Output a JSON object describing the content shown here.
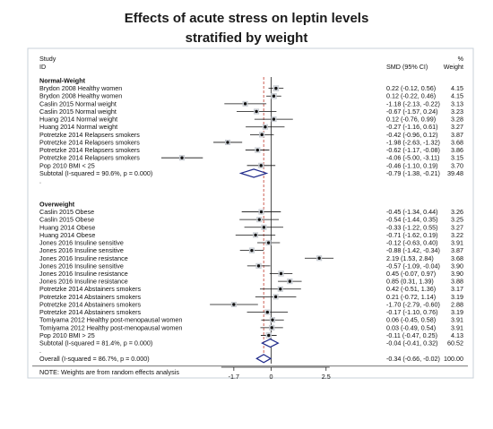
{
  "chart_data": {
    "type": "forest",
    "title_lines": [
      "Effects of acute stress on leptin levels",
      "stratified by weight"
    ],
    "headers": {
      "study": "Study",
      "id": "ID",
      "smd": "SMD (95% CI)",
      "weight_pct": "%",
      "weight": "Weight"
    },
    "x_ticks": [
      {
        "value": -1.7,
        "label": "-1.7"
      },
      {
        "value": 0,
        "label": "0"
      },
      {
        "value": 2.5,
        "label": "2.5"
      }
    ],
    "overall_line_value": -0.34,
    "groups": [
      {
        "name": "Normal-Weight",
        "studies": [
          {
            "label": "Brydon 2008 Healthy women",
            "es": 0.22,
            "lo": -0.12,
            "hi": 0.56,
            "ci_text": "0.22 (-0.12, 0.56)",
            "weight": "4.15"
          },
          {
            "label": "Brydon 2008 Healthy women",
            "es": 0.12,
            "lo": -0.22,
            "hi": 0.46,
            "ci_text": "0.12 (-0.22, 0.46)",
            "weight": "4.15"
          },
          {
            "label": "Caslin 2015 Normal weight",
            "es": -1.18,
            "lo": -2.13,
            "hi": -0.22,
            "ci_text": "-1.18 (-2.13, -0.22)",
            "weight": "3.13"
          },
          {
            "label": "Caslin 2015 Normal weight",
            "es": -0.67,
            "lo": -1.57,
            "hi": 0.24,
            "ci_text": "-0.67 (-1.57, 0.24)",
            "weight": "3.23"
          },
          {
            "label": "Huang 2014 Normal weight",
            "es": 0.12,
            "lo": -0.76,
            "hi": 0.99,
            "ci_text": "0.12 (-0.76, 0.99)",
            "weight": "3.28"
          },
          {
            "label": "Huang 2014 Normal weight",
            "es": -0.27,
            "lo": -1.16,
            "hi": 0.61,
            "ci_text": "-0.27 (-1.16, 0.61)",
            "weight": "3.27"
          },
          {
            "label": "Potretzke 2014 Relapsers smokers",
            "es": -0.42,
            "lo": -0.96,
            "hi": 0.12,
            "ci_text": "-0.42 (-0.96, 0.12)",
            "weight": "3.87"
          },
          {
            "label": "Potretzke 2014 Relapsers smokers",
            "es": -1.98,
            "lo": -2.63,
            "hi": -1.32,
            "ci_text": "-1.98 (-2.63, -1.32)",
            "weight": "3.68"
          },
          {
            "label": "Potretzke 2014 Relapsers smokers",
            "es": -0.62,
            "lo": -1.17,
            "hi": -0.08,
            "ci_text": "-0.62 (-1.17, -0.08)",
            "weight": "3.86"
          },
          {
            "label": "Potretzke 2014 Relapsers smokers",
            "es": -4.06,
            "lo": -5.0,
            "hi": -3.11,
            "ci_text": "-4.06 (-5.00, -3.11)",
            "weight": "3.15"
          },
          {
            "label": "Pop 2010 BMI < 25",
            "es": -0.46,
            "lo": -1.1,
            "hi": 0.19,
            "ci_text": "-0.46 (-1.10, 0.19)",
            "weight": "3.70"
          }
        ],
        "subtotal": {
          "label": "Subtotal  (I-squared = 90.6%, p = 0.000)",
          "es": -0.79,
          "lo": -1.38,
          "hi": -0.21,
          "ci_text": "-0.79 (-1.38, -0.21)",
          "weight": "39.48"
        }
      },
      {
        "name": "Overweight",
        "studies": [
          {
            "label": "Caslin 2015 Obese",
            "es": -0.45,
            "lo": -1.34,
            "hi": 0.44,
            "ci_text": "-0.45 (-1.34, 0.44)",
            "weight": "3.26"
          },
          {
            "label": "Caslin 2015 Obese",
            "es": -0.54,
            "lo": -1.44,
            "hi": 0.35,
            "ci_text": "-0.54 (-1.44, 0.35)",
            "weight": "3.25"
          },
          {
            "label": "Huang 2014 Obese",
            "es": -0.33,
            "lo": -1.22,
            "hi": 0.55,
            "ci_text": "-0.33 (-1.22, 0.55)",
            "weight": "3.27"
          },
          {
            "label": "Huang 2014 Obese",
            "es": -0.71,
            "lo": -1.62,
            "hi": 0.19,
            "ci_text": "-0.71 (-1.62, 0.19)",
            "weight": "3.22"
          },
          {
            "label": "Jones 2016 Insuline sensitive",
            "es": -0.12,
            "lo": -0.63,
            "hi": 0.4,
            "ci_text": "-0.12 (-0.63, 0.40)",
            "weight": "3.91"
          },
          {
            "label": "Jones 2016 Insuline sensitive",
            "es": -0.88,
            "lo": -1.42,
            "hi": -0.34,
            "ci_text": "-0.88 (-1.42, -0.34)",
            "weight": "3.87"
          },
          {
            "label": "Jones 2016 Insuline resistance",
            "es": 2.19,
            "lo": 1.53,
            "hi": 2.84,
            "ci_text": "2.19 (1.53, 2.84)",
            "weight": "3.68"
          },
          {
            "label": "Jones 2016 Insuline sensitive",
            "es": -0.57,
            "lo": -1.09,
            "hi": -0.04,
            "ci_text": "-0.57 (-1.09, -0.04)",
            "weight": "3.90"
          },
          {
            "label": "Jones 2016 Insuline resistance",
            "es": 0.45,
            "lo": -0.07,
            "hi": 0.97,
            "ci_text": "0.45 (-0.07, 0.97)",
            "weight": "3.90"
          },
          {
            "label": "Jones 2016 Insuline resistance",
            "es": 0.85,
            "lo": 0.31,
            "hi": 1.39,
            "ci_text": "0.85 (0.31, 1.39)",
            "weight": "3.88"
          },
          {
            "label": "Potretzke 2014 Abstainers smokers",
            "es": 0.42,
            "lo": -0.51,
            "hi": 1.36,
            "ci_text": "0.42 (-0.51, 1.36)",
            "weight": "3.17"
          },
          {
            "label": "Potretzke 2014 Abstainers smokers",
            "es": 0.21,
            "lo": -0.72,
            "hi": 1.14,
            "ci_text": "0.21 (-0.72, 1.14)",
            "weight": "3.19"
          },
          {
            "label": "Potretzke 2014 Abstainers smokers",
            "es": -1.7,
            "lo": -2.79,
            "hi": -0.6,
            "ci_text": "-1.70 (-2.79, -0.60)",
            "weight": "2.88"
          },
          {
            "label": "Potretzke 2014 Abstainers smokers",
            "es": -0.17,
            "lo": -1.1,
            "hi": 0.76,
            "ci_text": "-0.17 (-1.10, 0.76)",
            "weight": "3.19"
          },
          {
            "label": "Tomiyama 2012 Healthy post-menopausal women",
            "es": 0.06,
            "lo": -0.45,
            "hi": 0.58,
            "ci_text": "0.06 (-0.45, 0.58)",
            "weight": "3.91"
          },
          {
            "label": "Tomiyama 2012 Healthy post-menopausal women",
            "es": 0.03,
            "lo": -0.49,
            "hi": 0.54,
            "ci_text": "0.03 (-0.49, 0.54)",
            "weight": "3.91"
          },
          {
            "label": "Pop 2010 BMI > 25",
            "es": -0.11,
            "lo": -0.47,
            "hi": 0.25,
            "ci_text": "-0.11 (-0.47, 0.25)",
            "weight": "4.13"
          }
        ],
        "subtotal": {
          "label": "Subtotal  (I-squared = 81.4%, p = 0.000)",
          "es": -0.04,
          "lo": -0.41,
          "hi": 0.32,
          "ci_text": "-0.04 (-0.41, 0.32)",
          "weight": "60.52"
        }
      }
    ],
    "separator": ".",
    "overall": {
      "label": "Overall  (I-squared = 86.7%, p = 0.000)",
      "es": -0.34,
      "lo": -0.66,
      "hi": -0.02,
      "ci_text": "-0.34 (-0.66, -0.02)",
      "weight": "100.00"
    },
    "note": "NOTE: Weights are from random effects analysis"
  }
}
